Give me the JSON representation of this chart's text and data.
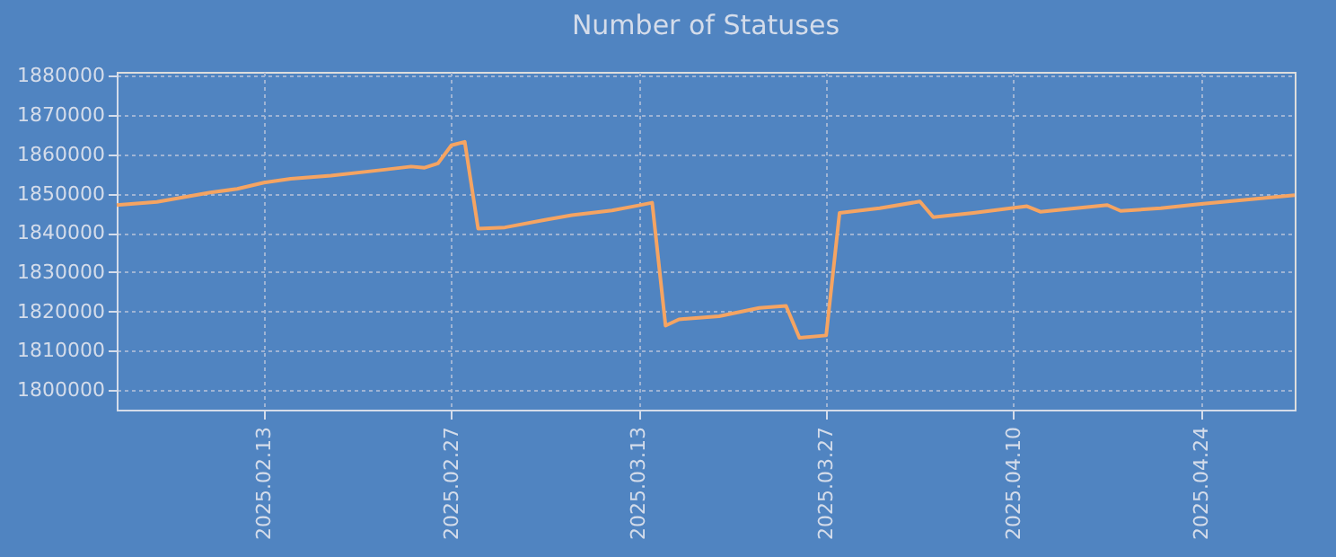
{
  "chart_data": {
    "type": "line",
    "title": "Number of Statuses",
    "x": [
      "2025-02-02",
      "2025-02-05",
      "2025-02-09",
      "2025-02-11",
      "2025-02-13",
      "2025-02-15",
      "2025-02-18",
      "2025-02-22",
      "2025-02-24",
      "2025-02-25",
      "2025-02-26",
      "2025-02-27",
      "2025-02-28",
      "2025-03-01",
      "2025-03-03",
      "2025-03-06",
      "2025-03-08",
      "2025-03-11",
      "2025-03-13",
      "2025-03-14",
      "2025-03-15",
      "2025-03-16",
      "2025-03-19",
      "2025-03-22",
      "2025-03-24",
      "2025-03-25",
      "2025-03-27",
      "2025-03-28",
      "2025-03-31",
      "2025-04-03",
      "2025-04-04",
      "2025-04-07",
      "2025-04-11",
      "2025-04-12",
      "2025-04-17",
      "2025-04-18",
      "2025-04-21",
      "2025-04-24",
      "2025-05-01"
    ],
    "series": [
      {
        "color": "#f5a462",
        "values": [
          1847100,
          1847900,
          1850300,
          1851200,
          1852800,
          1853800,
          1854600,
          1856100,
          1856900,
          1856600,
          1857700,
          1862300,
          1863200,
          1841100,
          1841400,
          1843300,
          1844500,
          1845700,
          1847000,
          1847700,
          1816400,
          1818000,
          1818800,
          1820900,
          1821400,
          1813300,
          1813900,
          1845100,
          1846300,
          1848000,
          1844000,
          1845100,
          1846800,
          1845400,
          1847100,
          1845600,
          1846300,
          1847400,
          1849600
        ]
      }
    ],
    "xlim": [
      "2025-02-02",
      "2025-05-01"
    ],
    "xticks": [
      {
        "value": "2025-02-13",
        "label": "2025.02.13"
      },
      {
        "value": "2025-02-27",
        "label": "2025.02.27"
      },
      {
        "value": "2025-03-13",
        "label": "2025.03.13"
      },
      {
        "value": "2025-03-27",
        "label": "2025.03.27"
      },
      {
        "value": "2025-04-10",
        "label": "2025.04.10"
      },
      {
        "value": "2025-04-24",
        "label": "2025.04.24"
      }
    ],
    "ylim": [
      1795000,
      1881000
    ],
    "yticks": [
      1800000,
      1810000,
      1820000,
      1830000,
      1840000,
      1850000,
      1860000,
      1870000,
      1880000
    ],
    "grid": true,
    "marker": "none",
    "line_style": "solid"
  }
}
